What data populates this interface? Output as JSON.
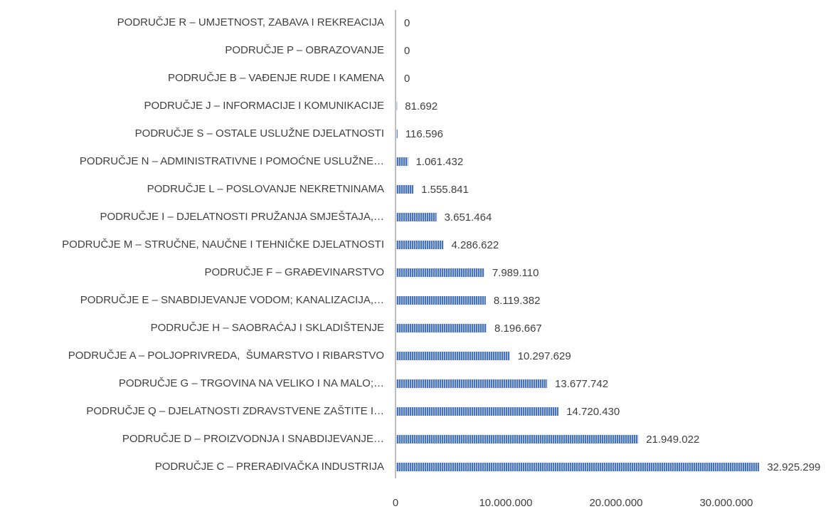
{
  "chart_data": {
    "type": "bar",
    "orientation": "horizontal",
    "categories": [
      "PODRUČJE R – UMJETNOST, ZABAVA I REKREACIJA",
      "PODRUČJE P – OBRAZOVANJE",
      "PODRUČJE B – VAĐENJE RUDE I KAMENA",
      "PODRUČJE J – INFORMACIJE I KOMUNIKACIJE",
      "PODRUČJE S – OSTALE USLUŽNE DJELATNOSTI",
      "PODRUČJE N – ADMINISTRATIVNE I POMOĆNE USLUŽNE…",
      "PODRUČJE L – POSLOVANJE NEKRETNINAMA",
      "PODRUČJE I – DJELATNOSTI PRUŽANJA SMJEŠTAJA,…",
      "PODRUČJE M – STRUČNE, NAUČNE I TEHNIČKE DJELATNOSTI",
      "PODRUČJE F – GRAĐEVINARSTVO",
      "PODRUČJE E – SNABDIJEVANJE VODOM; KANALIZACIJA,…",
      "PODRUČJE H – SAOBRAĆAJ I SKLADIŠTENJE",
      "PODRUČJE A – POLJOPRIVREDA,  ŠUMARSTVO I RIBARSTVO",
      "PODRUČJE G – TRGOVINA NA VELIKO I NA MALO;…",
      "PODRUČJE Q – DJELATNOSTI ZDRAVSTVENE ZAŠTITE I…",
      "PODRUČJE D – PROIZVODNJA I SNABDIJEVANJE…",
      "PODRUČJE C – PRERAĐIVAČKA INDUSTRIJA"
    ],
    "values": [
      0,
      0,
      0,
      81692,
      116596,
      1061432,
      1555841,
      3651464,
      4286622,
      7989110,
      8119382,
      8196667,
      10297629,
      13677742,
      14720430,
      21949022,
      32925299
    ],
    "value_labels": [
      "0",
      "0",
      "0",
      "81.692",
      "116.596",
      "1.061.432",
      "1.555.841",
      "3.651.464",
      "4.286.622",
      "7.989.110",
      "8.119.382",
      "8.196.667",
      "10.297.629",
      "13.677.742",
      "14.720.430",
      "21.949.022",
      "32.925.299"
    ],
    "color": "#4472c4",
    "xlim": [
      0,
      40000000
    ],
    "xticks": [
      0,
      {
        "value": 10000000,
        "label": "10.000.000"
      },
      {
        "value": 20000000,
        "label": "20.000.000"
      },
      {
        "value": 30000000,
        "label": "30.000.000"
      }
    ],
    "grid": false
  }
}
